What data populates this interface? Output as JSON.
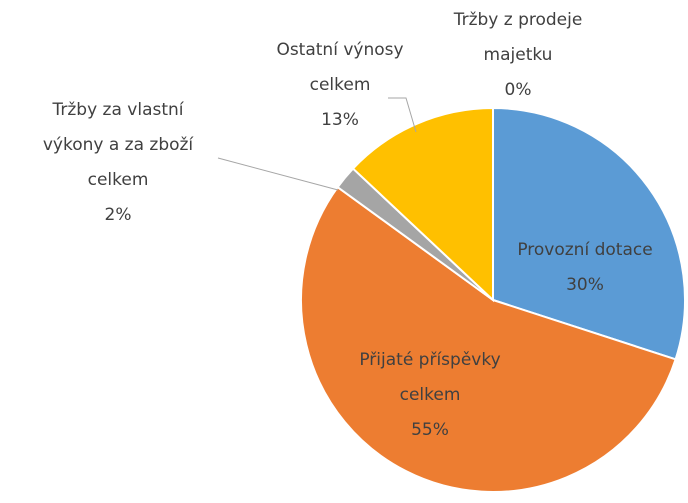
{
  "chart_data": {
    "type": "pie",
    "categories": [
      "Provozní dotace",
      "Přijaté příspěvky celkem",
      "Tržby za vlastní výkony a za zboží celkem",
      "Ostatní výnosy celkem",
      "Tržby z prodeje majetku"
    ],
    "values": [
      30,
      55,
      2,
      13,
      0
    ],
    "value_labels": [
      "30%",
      "55%",
      "2%",
      "13%",
      "0%"
    ],
    "colors": [
      "#5b9bd5",
      "#ed7d31",
      "#a5a5a5",
      "#ffc000",
      "#4472c4"
    ]
  }
}
